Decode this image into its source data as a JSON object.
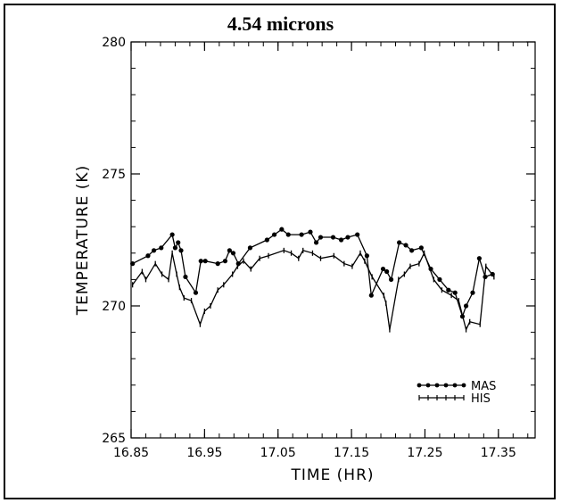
{
  "chart_data": {
    "type": "line",
    "title": "4.54 microns",
    "xlabel": "TIME (HR)",
    "ylabel": "TEMPERATURE (K)",
    "xlim": [
      16.85,
      17.4
    ],
    "ylim": [
      265,
      280
    ],
    "x_ticks": [
      "16.85",
      "16.95",
      "17.05",
      "17.15",
      "17.25",
      "17.35"
    ],
    "y_ticks": [
      "265",
      "270",
      "275",
      "280"
    ],
    "legend_position": "lower-right",
    "series": [
      {
        "name": "MAS",
        "marker": "filled-dot",
        "color": "#000000",
        "x": [
          16.852,
          16.873,
          16.881,
          16.891,
          16.906,
          16.91,
          16.914,
          16.918,
          16.924,
          16.938,
          16.945,
          16.951,
          16.968,
          16.978,
          16.984,
          16.989,
          16.996,
          17.012,
          17.035,
          17.045,
          17.055,
          17.064,
          17.082,
          17.094,
          17.102,
          17.108,
          17.125,
          17.136,
          17.145,
          17.158,
          17.171,
          17.177,
          17.193,
          17.198,
          17.204,
          17.215,
          17.224,
          17.232,
          17.245,
          17.258,
          17.27,
          17.282,
          17.291,
          17.301,
          17.306,
          17.315,
          17.324,
          17.332,
          17.342
        ],
        "y": [
          271.6,
          271.9,
          272.1,
          272.2,
          272.7,
          272.2,
          272.4,
          272.1,
          271.1,
          270.5,
          271.7,
          271.7,
          271.6,
          271.7,
          272.1,
          272.0,
          271.6,
          272.2,
          272.5,
          272.7,
          272.9,
          272.7,
          272.7,
          272.8,
          272.4,
          272.6,
          272.6,
          272.5,
          272.6,
          272.7,
          271.9,
          270.4,
          271.4,
          271.3,
          271.0,
          272.4,
          272.3,
          272.1,
          272.2,
          271.4,
          271.0,
          270.6,
          270.5,
          269.6,
          270.0,
          270.5,
          271.8,
          271.1,
          271.2
        ]
      },
      {
        "name": "HIS",
        "marker": "small-tick",
        "color": "#000000",
        "x": [
          16.852,
          16.865,
          16.87,
          16.883,
          16.892,
          16.901,
          16.906,
          16.912,
          16.916,
          16.922,
          16.932,
          16.944,
          16.95,
          16.958,
          16.968,
          16.976,
          16.988,
          16.995,
          17.003,
          17.013,
          17.025,
          17.037,
          17.058,
          17.068,
          17.078,
          17.084,
          17.097,
          17.108,
          17.126,
          17.14,
          17.151,
          17.162,
          17.168,
          17.178,
          17.194,
          17.197,
          17.202,
          17.214,
          17.222,
          17.23,
          17.242,
          17.249,
          17.262,
          17.273,
          17.286,
          17.296,
          17.306,
          17.311,
          17.325,
          17.333,
          17.344
        ],
        "y": [
          270.8,
          271.3,
          271.0,
          271.6,
          271.2,
          271.0,
          272.0,
          271.2,
          270.7,
          270.3,
          270.2,
          269.3,
          269.8,
          270.0,
          270.6,
          270.8,
          271.2,
          271.5,
          271.7,
          271.4,
          271.8,
          271.9,
          272.1,
          272.0,
          271.8,
          272.1,
          272.0,
          271.8,
          271.9,
          271.6,
          271.5,
          272.0,
          271.7,
          271.1,
          270.4,
          270.1,
          269.1,
          271.0,
          271.2,
          271.5,
          271.6,
          272.0,
          271.0,
          270.6,
          270.4,
          270.2,
          269.1,
          269.4,
          269.3,
          271.5,
          271.1
        ]
      }
    ]
  }
}
